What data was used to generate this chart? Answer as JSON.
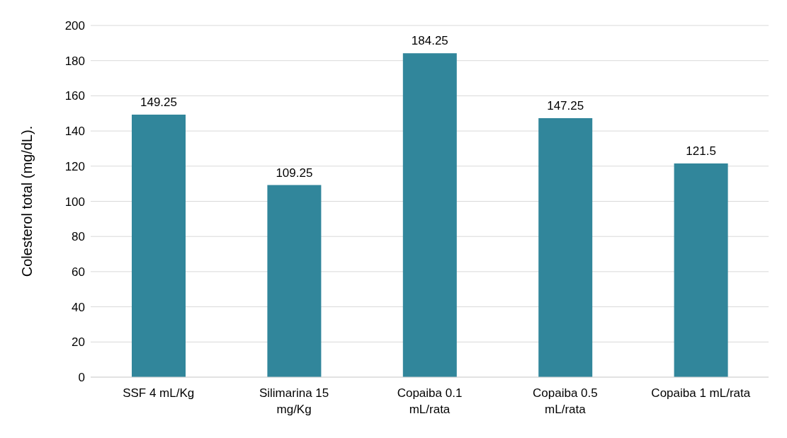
{
  "chart_data": {
    "type": "bar",
    "ylabel": "Colesterol total (mg/dL).",
    "categories": [
      "SSF 4 mL/Kg",
      "Silimarina 15 mg/Kg",
      "Copaiba 0.1 mL/rata",
      "Copaiba 0.5 mL/rata",
      "Copaiba 1 mL/rata"
    ],
    "values": [
      149.25,
      109.25,
      184.25,
      147.25,
      121.5
    ],
    "color": "#31869b",
    "ylim": [
      0,
      200
    ],
    "yticks": [
      0,
      20,
      40,
      60,
      80,
      100,
      120,
      140,
      160,
      180,
      200
    ],
    "grid": "y",
    "data_labels": true
  }
}
